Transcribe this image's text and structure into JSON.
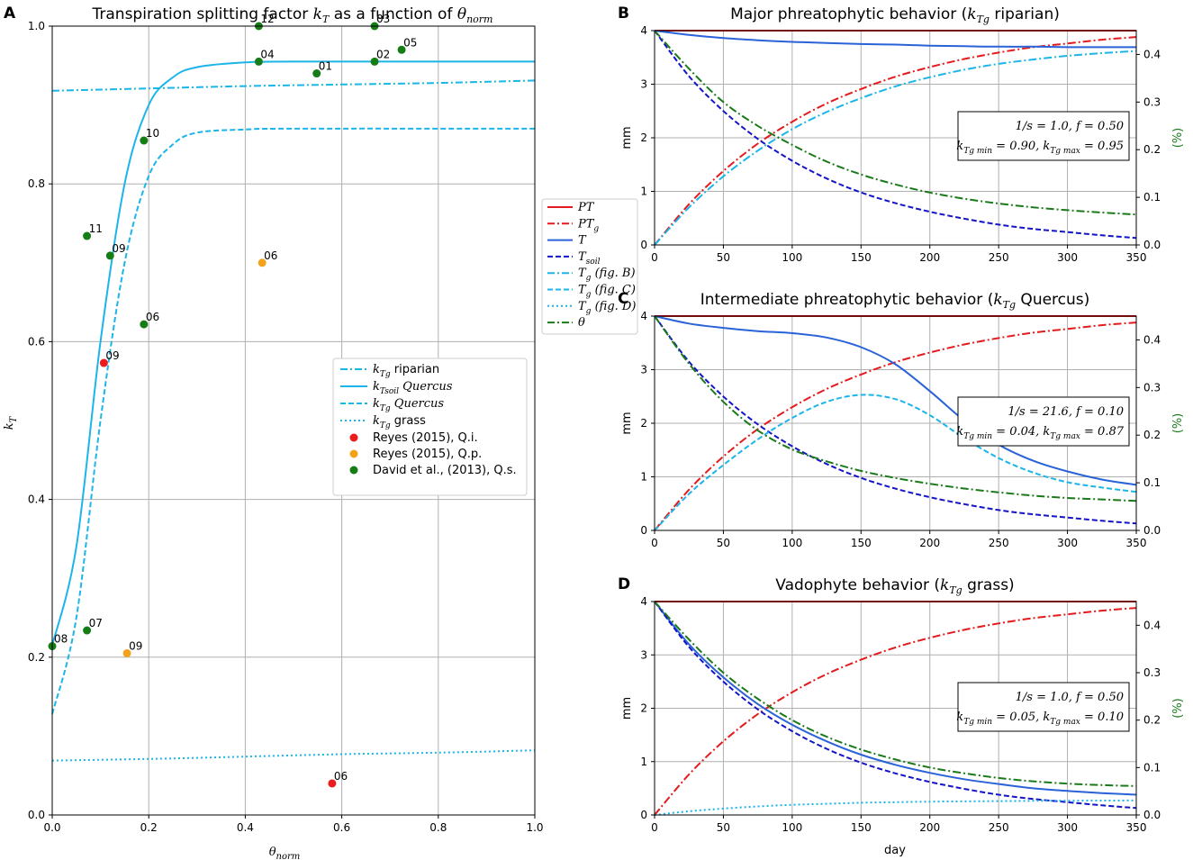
{
  "colors": {
    "cyan": "#1bb5ea",
    "red": "#e41a1c",
    "blue": "#2a62d8",
    "darkblue": "#1414c8",
    "green": "#1a7a1a",
    "orange": "#f5a21b",
    "ptred": "#ed1c1c",
    "ptgreen": "#167c16"
  },
  "panels": {
    "A": {
      "letter": "A",
      "title_pre": "Transpiration splitting factor ",
      "title_k": "k",
      "title_sub": "T",
      "title_mid": " as a function of ",
      "title_theta": "θ",
      "title_theta_sub": "norm",
      "xlabel": "θ",
      "xlabel_sub": "norm",
      "ylabel": "k",
      "ylabel_sub": "T"
    },
    "B": {
      "letter": "B",
      "title_pre": "Major phreatophytic behavior (",
      "title_k": "k",
      "title_sub": "Tg",
      "title_post": " riparian)",
      "ylabel": "mm",
      "y2label": "(%)",
      "box_line1": "1/s = 1.0,  f = 0.50",
      "box_line2": "kTgmin = 0.90,  kTgmax = 0.95"
    },
    "C": {
      "letter": "C",
      "title_pre": "Intermediate phreatophytic behavior (",
      "title_k": "k",
      "title_sub": "Tg",
      "title_post": " Quercus)",
      "ylabel": "mm",
      "y2label": "(%)",
      "box_line1": "1/s = 21.6,  f = 0.10",
      "box_line2": "kTgmin = 0.04,  kTgmax = 0.87"
    },
    "D": {
      "letter": "D",
      "title_pre": "Vadophyte behavior (",
      "title_k": "k",
      "title_sub": "Tg",
      "title_post": " grass)",
      "ylabel": "mm",
      "y2label": "(%)",
      "xlabel": "day",
      "box_line1": "1/s = 1.0,  f = 0.50",
      "box_line2": "kTgmin = 0.05,  kTgmax = 0.10"
    }
  },
  "legendA": [
    {
      "label": "kTg riparian",
      "style": "dashdot"
    },
    {
      "label": "kTsoil Quercus",
      "style": "solid"
    },
    {
      "label": "kTg Quercus",
      "style": "dashed"
    },
    {
      "label": "kTg grass",
      "style": "dotted"
    },
    {
      "label": "Reyes (2015), Q.i.",
      "style": "dot-red"
    },
    {
      "label": "Reyes (2015), Q.p.",
      "style": "dot-orange"
    },
    {
      "label": "David et al., (2013), Q.s.",
      "style": "dot-green"
    }
  ],
  "legendMid": [
    {
      "label": "PT"
    },
    {
      "label": "PTg"
    },
    {
      "label": "T"
    },
    {
      "label": "Tsoil"
    },
    {
      "label": "Tg (fig. B)"
    },
    {
      "label": "Tg (fig. C)"
    },
    {
      "label": "Tg (fig. D)"
    },
    {
      "label": "θ"
    }
  ],
  "chart_data": [
    {
      "panel": "A",
      "type": "scatter",
      "title": "Transpiration splitting factor kT as a function of θnorm",
      "xlabel": "θnorm",
      "ylabel": "kT",
      "xlim": [
        0,
        1
      ],
      "ylim": [
        0,
        1
      ],
      "xticks": [
        "0.0",
        "0.2",
        "0.4",
        "0.6",
        "0.8",
        "1.0"
      ],
      "yticks": [
        "0.0",
        "0.2",
        "0.4",
        "0.6",
        "0.8",
        "1.0"
      ],
      "curves": [
        {
          "name": "kTg riparian",
          "x": [
            0,
            0.2,
            0.4,
            0.6,
            0.8,
            1.0
          ],
          "y": [
            0.918,
            0.921,
            0.924,
            0.926,
            0.928,
            0.931
          ]
        },
        {
          "name": "kTsoil Quercus",
          "x": [
            0,
            0.05,
            0.1,
            0.15,
            0.2,
            0.25,
            0.3,
            0.4,
            0.5,
            1.0
          ],
          "y": [
            0.215,
            0.34,
            0.6,
            0.8,
            0.9,
            0.935,
            0.948,
            0.954,
            0.955,
            0.955
          ]
        },
        {
          "name": "kTg Quercus",
          "x": [
            0,
            0.05,
            0.1,
            0.15,
            0.2,
            0.25,
            0.3,
            0.4,
            0.5,
            1.0
          ],
          "y": [
            0.128,
            0.25,
            0.5,
            0.7,
            0.81,
            0.85,
            0.865,
            0.869,
            0.87,
            0.87
          ]
        },
        {
          "name": "kTg grass",
          "x": [
            0,
            0.2,
            0.4,
            0.6,
            0.8,
            1.0
          ],
          "y": [
            0.069,
            0.071,
            0.074,
            0.077,
            0.079,
            0.082
          ]
        }
      ],
      "points": [
        {
          "group": "Reyes (2015), Q.i.",
          "label": "09",
          "x": 0.107,
          "y": 0.573
        },
        {
          "group": "Reyes (2015), Q.i.",
          "label": "06",
          "x": 0.58,
          "y": 0.04
        },
        {
          "group": "Reyes (2015), Q.p.",
          "label": "06",
          "x": 0.435,
          "y": 0.7
        },
        {
          "group": "Reyes (2015), Q.p.",
          "label": "09",
          "x": 0.155,
          "y": 0.205
        },
        {
          "group": "David et al., (2013), Q.s.",
          "label": "12",
          "x": 0.428,
          "y": 1.0
        },
        {
          "group": "David et al., (2013), Q.s.",
          "label": "03",
          "x": 0.668,
          "y": 1.0
        },
        {
          "group": "David et al., (2013), Q.s.",
          "label": "05",
          "x": 0.724,
          "y": 0.97
        },
        {
          "group": "David et al., (2013), Q.s.",
          "label": "04",
          "x": 0.428,
          "y": 0.955
        },
        {
          "group": "David et al., (2013), Q.s.",
          "label": "02",
          "x": 0.668,
          "y": 0.955
        },
        {
          "group": "David et al., (2013), Q.s.",
          "label": "01",
          "x": 0.548,
          "y": 0.94
        },
        {
          "group": "David et al., (2013), Q.s.",
          "label": "10",
          "x": 0.19,
          "y": 0.855
        },
        {
          "group": "David et al., (2013), Q.s.",
          "label": "11",
          "x": 0.072,
          "y": 0.734
        },
        {
          "group": "David et al., (2013), Q.s.",
          "label": "09",
          "x": 0.12,
          "y": 0.709
        },
        {
          "group": "David et al., (2013), Q.s.",
          "label": "06",
          "x": 0.19,
          "y": 0.622
        },
        {
          "group": "David et al., (2013), Q.s.",
          "label": "07",
          "x": 0.072,
          "y": 0.234
        },
        {
          "group": "David et al., (2013), Q.s.",
          "label": "08",
          "x": 0.0,
          "y": 0.214
        }
      ]
    },
    {
      "panel": "B",
      "type": "line",
      "title": "Major phreatophytic behavior (kTg riparian)",
      "xlim": [
        0,
        350
      ],
      "ylim": [
        0,
        4
      ],
      "y2lim": [
        0,
        0.45
      ],
      "xticks": [
        "0",
        "50",
        "100",
        "150",
        "200",
        "250",
        "300",
        "350"
      ],
      "yticks": [
        "0",
        "1",
        "2",
        "3",
        "4"
      ],
      "y2ticks": [
        "0.0",
        "0.1",
        "0.2",
        "0.3",
        "0.4"
      ],
      "x": [
        0,
        25,
        50,
        75,
        100,
        125,
        150,
        175,
        200,
        225,
        250,
        275,
        300,
        325,
        350
      ],
      "series": [
        {
          "name": "PT",
          "values": [
            4,
            4,
            4,
            4,
            4,
            4,
            4,
            4,
            4,
            4,
            4,
            4,
            4,
            4,
            4
          ]
        },
        {
          "name": "PTg",
          "values": [
            0.0,
            0.76,
            1.38,
            1.89,
            2.3,
            2.64,
            2.91,
            3.14,
            3.32,
            3.47,
            3.59,
            3.69,
            3.76,
            3.83,
            3.88
          ]
        },
        {
          "name": "T",
          "values": [
            4.0,
            3.92,
            3.86,
            3.82,
            3.79,
            3.77,
            3.75,
            3.74,
            3.72,
            3.71,
            3.7,
            3.7,
            3.69,
            3.69,
            3.69
          ]
        },
        {
          "name": "Tsoil",
          "values": [
            4.0,
            3.15,
            2.5,
            1.98,
            1.57,
            1.24,
            0.98,
            0.78,
            0.62,
            0.49,
            0.38,
            0.3,
            0.24,
            0.18,
            0.13
          ]
        },
        {
          "name": "Tg (fig. B)",
          "values": [
            0.0,
            0.7,
            1.28,
            1.76,
            2.16,
            2.48,
            2.74,
            2.96,
            3.13,
            3.27,
            3.38,
            3.46,
            3.53,
            3.58,
            3.62
          ]
        },
        {
          "name": "θ",
          "axis": "right",
          "values": [
            0.45,
            0.37,
            0.3,
            0.25,
            0.21,
            0.175,
            0.148,
            0.127,
            0.11,
            0.097,
            0.087,
            0.079,
            0.073,
            0.068,
            0.064
          ]
        }
      ]
    },
    {
      "panel": "C",
      "type": "line",
      "title": "Intermediate phreatophytic behavior (kTg Quercus)",
      "xlim": [
        0,
        350
      ],
      "ylim": [
        0,
        4
      ],
      "y2lim": [
        0,
        0.45
      ],
      "xticks": [
        "0",
        "50",
        "100",
        "150",
        "200",
        "250",
        "300",
        "350"
      ],
      "yticks": [
        "0",
        "1",
        "2",
        "3",
        "4"
      ],
      "y2ticks": [
        "0.0",
        "0.1",
        "0.2",
        "0.3",
        "0.4"
      ],
      "x": [
        0,
        25,
        50,
        75,
        100,
        125,
        150,
        175,
        200,
        225,
        250,
        275,
        300,
        325,
        350
      ],
      "series": [
        {
          "name": "PT",
          "values": [
            4,
            4,
            4,
            4,
            4,
            4,
            4,
            4,
            4,
            4,
            4,
            4,
            4,
            4,
            4
          ]
        },
        {
          "name": "PTg",
          "values": [
            0.0,
            0.76,
            1.38,
            1.89,
            2.3,
            2.64,
            2.91,
            3.14,
            3.32,
            3.47,
            3.59,
            3.69,
            3.76,
            3.83,
            3.88
          ]
        },
        {
          "name": "T",
          "values": [
            4.0,
            3.86,
            3.78,
            3.72,
            3.68,
            3.6,
            3.42,
            3.1,
            2.6,
            2.05,
            1.6,
            1.3,
            1.1,
            0.95,
            0.85
          ]
        },
        {
          "name": "Tsoil",
          "values": [
            4.0,
            3.15,
            2.5,
            1.98,
            1.57,
            1.24,
            0.98,
            0.78,
            0.62,
            0.49,
            0.38,
            0.3,
            0.24,
            0.18,
            0.13
          ]
        },
        {
          "name": "Tg (fig. C)",
          "values": [
            0.0,
            0.68,
            1.22,
            1.7,
            2.1,
            2.4,
            2.53,
            2.45,
            2.15,
            1.72,
            1.35,
            1.08,
            0.9,
            0.8,
            0.72
          ]
        },
        {
          "name": "θ",
          "axis": "right",
          "values": [
            0.45,
            0.35,
            0.27,
            0.21,
            0.17,
            0.145,
            0.125,
            0.11,
            0.098,
            0.088,
            0.08,
            0.073,
            0.068,
            0.065,
            0.062
          ]
        }
      ]
    },
    {
      "panel": "D",
      "type": "line",
      "title": "Vadophyte behavior (kTg grass)",
      "xlabel": "day",
      "xlim": [
        0,
        350
      ],
      "ylim": [
        0,
        4
      ],
      "y2lim": [
        0,
        0.45
      ],
      "xticks": [
        "0",
        "50",
        "100",
        "150",
        "200",
        "250",
        "300",
        "350"
      ],
      "yticks": [
        "0",
        "1",
        "2",
        "3",
        "4"
      ],
      "y2ticks": [
        "0.0",
        "0.1",
        "0.2",
        "0.3",
        "0.4"
      ],
      "x": [
        0,
        25,
        50,
        75,
        100,
        125,
        150,
        175,
        200,
        225,
        250,
        275,
        300,
        325,
        350
      ],
      "series": [
        {
          "name": "PT",
          "values": [
            4,
            4,
            4,
            4,
            4,
            4,
            4,
            4,
            4,
            4,
            4,
            4,
            4,
            4,
            4
          ]
        },
        {
          "name": "PTg",
          "values": [
            0.0,
            0.76,
            1.38,
            1.89,
            2.3,
            2.64,
            2.91,
            3.14,
            3.32,
            3.47,
            3.59,
            3.69,
            3.76,
            3.83,
            3.88
          ]
        },
        {
          "name": "T",
          "values": [
            4.0,
            3.2,
            2.58,
            2.08,
            1.69,
            1.38,
            1.13,
            0.94,
            0.79,
            0.67,
            0.58,
            0.5,
            0.45,
            0.41,
            0.38
          ]
        },
        {
          "name": "Tsoil",
          "values": [
            4.0,
            3.15,
            2.5,
            1.98,
            1.57,
            1.24,
            0.98,
            0.78,
            0.62,
            0.49,
            0.38,
            0.3,
            0.24,
            0.18,
            0.13
          ]
        },
        {
          "name": "Tg (fig. D)",
          "values": [
            0.0,
            0.07,
            0.12,
            0.16,
            0.19,
            0.21,
            0.23,
            0.24,
            0.25,
            0.255,
            0.26,
            0.265,
            0.268,
            0.27,
            0.272
          ]
        },
        {
          "name": "θ",
          "axis": "right",
          "values": [
            0.45,
            0.37,
            0.3,
            0.245,
            0.2,
            0.165,
            0.138,
            0.117,
            0.1,
            0.088,
            0.078,
            0.071,
            0.066,
            0.063,
            0.061
          ]
        }
      ]
    }
  ]
}
